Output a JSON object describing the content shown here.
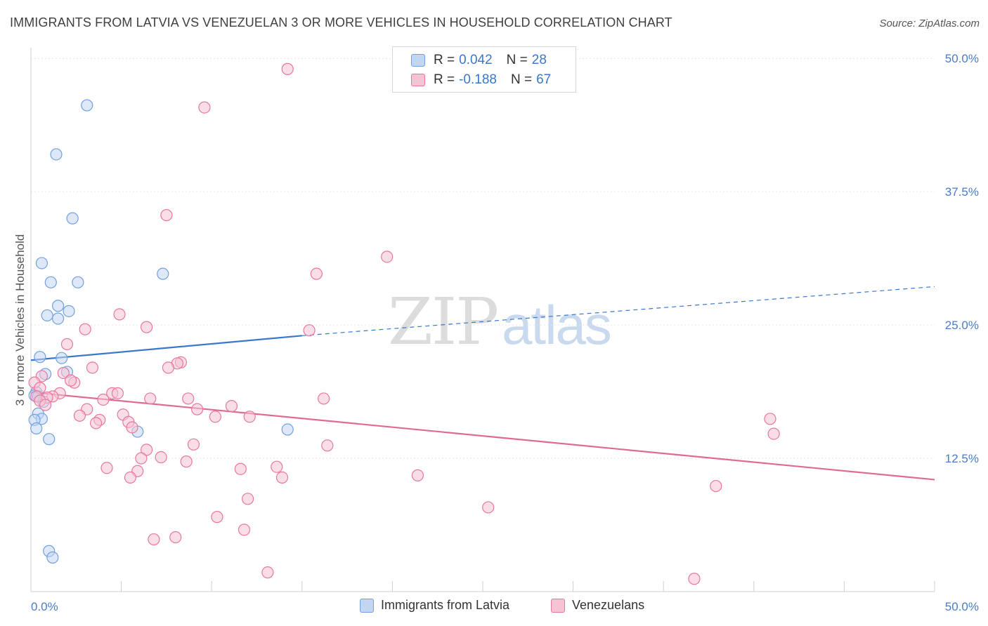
{
  "title": "IMMIGRANTS FROM LATVIA VS VENEZUELAN 3 OR MORE VEHICLES IN HOUSEHOLD CORRELATION CHART",
  "source": "Source: ZipAtlas.com",
  "watermark": {
    "zip": "ZIP",
    "atlas": "atlas"
  },
  "colors": {
    "latvia": "#6fa0e0",
    "latvia_fill": "#c2d6f2",
    "venezuela": "#e8779e",
    "venezuela_fill": "#f5c3d4",
    "tick_text": "#4a7cc9"
  },
  "legend": {
    "rows": [
      {
        "r_label": "R =",
        "r_value": "0.042",
        "n_label": "N =",
        "n_value": "28"
      },
      {
        "r_label": "R =",
        "r_value": "-0.188",
        "n_label": "N =",
        "n_value": "67"
      }
    ]
  },
  "bottom_legend": {
    "latvia": "Immigrants from Latvia",
    "venezuela": "Venezuelans"
  },
  "chart_data": {
    "type": "scatter",
    "ylabel": "3 or more Vehicles in Household",
    "xlabel": "",
    "xlim": [
      0,
      50
    ],
    "ylim": [
      0,
      51
    ],
    "x_tick_labels": [
      "0.0%",
      "50.0%"
    ],
    "y_ticks": [
      12.5,
      25.0,
      37.5,
      50.0
    ],
    "y_tick_labels": [
      "12.5%",
      "25.0%",
      "37.5%",
      "50.0%"
    ],
    "grid": true,
    "series": [
      {
        "name": "Immigrants from Latvia",
        "points": [
          [
            3.1,
            45.6
          ],
          [
            1.4,
            41.0
          ],
          [
            2.3,
            35.0
          ],
          [
            0.6,
            30.8
          ],
          [
            1.1,
            29.0
          ],
          [
            2.6,
            29.0
          ],
          [
            7.3,
            29.8
          ],
          [
            1.5,
            26.8
          ],
          [
            2.1,
            26.3
          ],
          [
            0.9,
            25.9
          ],
          [
            1.5,
            25.6
          ],
          [
            0.5,
            22.0
          ],
          [
            1.7,
            21.9
          ],
          [
            0.8,
            20.4
          ],
          [
            2.0,
            20.6
          ],
          [
            0.3,
            18.7
          ],
          [
            0.2,
            18.4
          ],
          [
            0.4,
            18.3
          ],
          [
            0.7,
            17.8
          ],
          [
            0.4,
            16.7
          ],
          [
            0.6,
            16.2
          ],
          [
            0.2,
            16.1
          ],
          [
            0.3,
            15.3
          ],
          [
            1.0,
            14.3
          ],
          [
            5.9,
            15.0
          ],
          [
            14.2,
            15.2
          ],
          [
            1.0,
            3.8
          ],
          [
            1.2,
            3.2
          ]
        ]
      },
      {
        "name": "Venezuelans",
        "points": [
          [
            14.2,
            49.0
          ],
          [
            9.6,
            45.4
          ],
          [
            7.5,
            35.3
          ],
          [
            19.7,
            31.4
          ],
          [
            15.8,
            29.8
          ],
          [
            4.9,
            26.0
          ],
          [
            6.4,
            24.8
          ],
          [
            3.0,
            24.6
          ],
          [
            15.4,
            24.5
          ],
          [
            2.0,
            23.2
          ],
          [
            8.3,
            21.5
          ],
          [
            8.1,
            21.4
          ],
          [
            3.4,
            21.0
          ],
          [
            7.6,
            21.0
          ],
          [
            1.8,
            20.5
          ],
          [
            0.6,
            20.2
          ],
          [
            2.4,
            19.6
          ],
          [
            0.2,
            19.6
          ],
          [
            2.2,
            19.8
          ],
          [
            0.5,
            19.1
          ],
          [
            1.6,
            18.6
          ],
          [
            4.5,
            18.6
          ],
          [
            4.8,
            18.6
          ],
          [
            0.3,
            18.3
          ],
          [
            1.2,
            18.3
          ],
          [
            0.9,
            18.2
          ],
          [
            6.6,
            18.1
          ],
          [
            8.7,
            18.1
          ],
          [
            16.2,
            18.1
          ],
          [
            4.0,
            18.0
          ],
          [
            0.5,
            17.9
          ],
          [
            0.8,
            17.5
          ],
          [
            11.1,
            17.4
          ],
          [
            3.1,
            17.1
          ],
          [
            9.2,
            17.1
          ],
          [
            2.7,
            16.5
          ],
          [
            5.1,
            16.6
          ],
          [
            10.2,
            16.4
          ],
          [
            12.1,
            16.4
          ],
          [
            3.8,
            16.1
          ],
          [
            5.4,
            15.9
          ],
          [
            3.6,
            15.8
          ],
          [
            5.6,
            15.4
          ],
          [
            40.9,
            16.2
          ],
          [
            41.1,
            14.8
          ],
          [
            9.0,
            13.8
          ],
          [
            16.4,
            13.7
          ],
          [
            6.4,
            13.3
          ],
          [
            6.1,
            12.5
          ],
          [
            7.2,
            12.6
          ],
          [
            8.6,
            12.2
          ],
          [
            4.2,
            11.6
          ],
          [
            11.6,
            11.5
          ],
          [
            13.6,
            11.7
          ],
          [
            5.9,
            11.3
          ],
          [
            5.5,
            10.7
          ],
          [
            13.9,
            10.7
          ],
          [
            21.4,
            10.9
          ],
          [
            37.9,
            9.9
          ],
          [
            12.0,
            8.7
          ],
          [
            25.3,
            7.9
          ],
          [
            10.3,
            7.0
          ],
          [
            11.8,
            5.8
          ],
          [
            8.0,
            5.1
          ],
          [
            6.8,
            4.9
          ],
          [
            13.1,
            1.8
          ],
          [
            36.7,
            1.2
          ]
        ]
      }
    ],
    "trend_lines": [
      {
        "series": "Immigrants from Latvia",
        "solid": [
          [
            0,
            21.7
          ],
          [
            15,
            24.0
          ]
        ],
        "dashed": [
          [
            15,
            24.0
          ],
          [
            50,
            28.6
          ]
        ]
      },
      {
        "series": "Venezuelans",
        "solid": [
          [
            0,
            18.7
          ],
          [
            50,
            10.5
          ]
        ]
      }
    ]
  }
}
